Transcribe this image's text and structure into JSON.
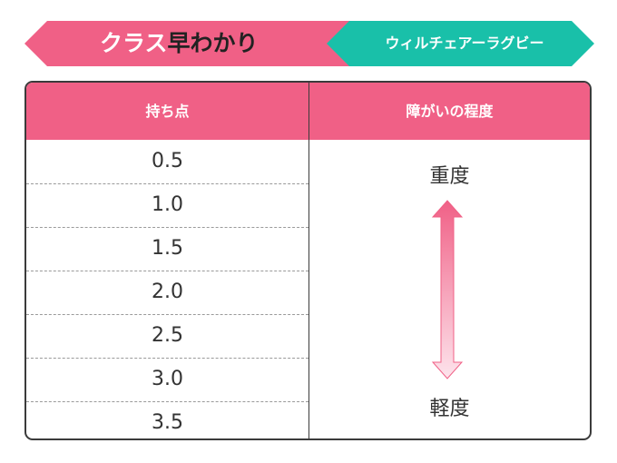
{
  "banner": {
    "title_prefix": "クラス",
    "title_suffix": "早わかり",
    "sport": "ウィルチェアーラグビー",
    "colors": {
      "pink": "#f06086",
      "teal": "#19c0a9"
    }
  },
  "table": {
    "col_points": "持ち点",
    "col_degree": "障がいの程度",
    "points": [
      "0.5",
      "1.0",
      "1.5",
      "2.0",
      "2.5",
      "3.0",
      "3.5"
    ],
    "degree_heavy": "重度",
    "degree_light": "軽度"
  }
}
